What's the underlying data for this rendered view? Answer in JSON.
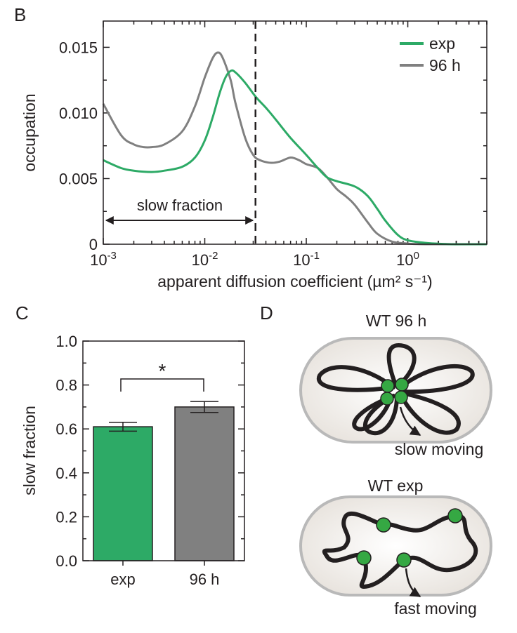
{
  "panels": {
    "b": "B",
    "c": "C",
    "d": "D"
  },
  "chart_data": [
    {
      "type": "line",
      "panel": "B",
      "xscale": "log",
      "xlim": [
        0.001,
        6.0
      ],
      "ylim": [
        0,
        0.017
      ],
      "xlabel": "apparent diffusion coefficient (µm² s⁻¹)",
      "ylabel": "occupation",
      "x_ticks": [
        0.001,
        0.01,
        0.1,
        1
      ],
      "x_tick_labels": [
        {
          "base": "10",
          "exp": "-3"
        },
        {
          "base": "10",
          "exp": "-2"
        },
        {
          "base": "10",
          "exp": "-1"
        },
        {
          "base": "10",
          "exp": "0"
        }
      ],
      "y_ticks": [
        0,
        0.005,
        0.01,
        0.015
      ],
      "y_tick_labels": [
        "0",
        "0.005",
        "0.010",
        "0.015"
      ],
      "threshold": 0.0316,
      "annotation": "slow fraction",
      "legend_position": "top-right",
      "series": [
        {
          "name": "exp",
          "color": "#2daa66",
          "points": [
            [
              0.001,
              0.0064
            ],
            [
              0.0015,
              0.0058
            ],
            [
              0.002,
              0.0056
            ],
            [
              0.003,
              0.0055
            ],
            [
              0.004,
              0.0056
            ],
            [
              0.006,
              0.0059
            ],
            [
              0.008,
              0.0066
            ],
            [
              0.01,
              0.0079
            ],
            [
              0.012,
              0.0097
            ],
            [
              0.014,
              0.0115
            ],
            [
              0.016,
              0.0127
            ],
            [
              0.018,
              0.0132
            ],
            [
              0.02,
              0.0131
            ],
            [
              0.025,
              0.0123
            ],
            [
              0.032,
              0.0112
            ],
            [
              0.04,
              0.0104
            ],
            [
              0.05,
              0.0095
            ],
            [
              0.07,
              0.0081
            ],
            [
              0.1,
              0.0068
            ],
            [
              0.13,
              0.0058
            ],
            [
              0.16,
              0.0051
            ],
            [
              0.2,
              0.0048
            ],
            [
              0.3,
              0.0044
            ],
            [
              0.4,
              0.0037
            ],
            [
              0.5,
              0.0027
            ],
            [
              0.6,
              0.0018
            ],
            [
              0.8,
              0.0007
            ],
            [
              1.0,
              0.0003
            ],
            [
              1.5,
              0.0001
            ],
            [
              2.0,
              4e-05
            ],
            [
              3.0,
              0.0
            ],
            [
              6.0,
              0.0
            ]
          ]
        },
        {
          "name": "96 h",
          "color": "#808080",
          "points": [
            [
              0.001,
              0.0107
            ],
            [
              0.0015,
              0.0083
            ],
            [
              0.002,
              0.0076
            ],
            [
              0.0025,
              0.0074
            ],
            [
              0.003,
              0.0074
            ],
            [
              0.004,
              0.0076
            ],
            [
              0.006,
              0.0086
            ],
            [
              0.008,
              0.0105
            ],
            [
              0.01,
              0.0127
            ],
            [
              0.012,
              0.0142
            ],
            [
              0.0135,
              0.0146
            ],
            [
              0.015,
              0.0142
            ],
            [
              0.018,
              0.0125
            ],
            [
              0.02,
              0.0108
            ],
            [
              0.025,
              0.0081
            ],
            [
              0.03,
              0.0068
            ],
            [
              0.035,
              0.0064
            ],
            [
              0.045,
              0.0062
            ],
            [
              0.055,
              0.0063
            ],
            [
              0.07,
              0.0066
            ],
            [
              0.085,
              0.0064
            ],
            [
              0.1,
              0.0061
            ],
            [
              0.13,
              0.0058
            ],
            [
              0.16,
              0.0051
            ],
            [
              0.2,
              0.0042
            ],
            [
              0.25,
              0.0036
            ],
            [
              0.3,
              0.003
            ],
            [
              0.4,
              0.0017
            ],
            [
              0.5,
              0.0008
            ],
            [
              0.7,
              0.0002
            ],
            [
              1.0,
              5e-05
            ],
            [
              1.5,
              0.0
            ],
            [
              6.0,
              0.0
            ]
          ]
        }
      ]
    },
    {
      "type": "bar",
      "panel": "C",
      "categories": [
        "exp",
        "96 h"
      ],
      "values": [
        0.61,
        0.7
      ],
      "errors": [
        0.02,
        0.025
      ],
      "colors": [
        "#2daa66",
        "#808080"
      ],
      "ylabel": "slow fraction",
      "ylim": [
        0,
        1.0
      ],
      "y_ticks": [
        0,
        0.2,
        0.4,
        0.6,
        0.8,
        1.0
      ],
      "y_tick_labels": [
        "0.0",
        "0.2",
        "0.4",
        "0.6",
        "0.8",
        "1.0"
      ],
      "significance": "*"
    }
  ],
  "diagram": {
    "top_title": "WT 96 h",
    "top_label": "slow moving",
    "bottom_title": "WT exp",
    "bottom_label": "fast moving",
    "cell_fill": "#efebe6",
    "cell_stroke": "#b9b9b9",
    "chromosome_color": "#231f20",
    "protein_color": "#35a843"
  }
}
